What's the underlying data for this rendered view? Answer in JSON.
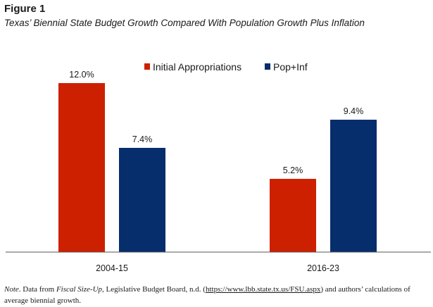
{
  "figure_label": "Figure 1",
  "figure_title": "Texas’ Biennial State Budget Growth Compared With Population Growth Plus Inflation",
  "colors": {
    "initial": "#cc2000",
    "popinf": "#062d6c",
    "axis": "#555555",
    "text": "#1a1a1a"
  },
  "chart_data": {
    "type": "bar",
    "categories": [
      "2004-15",
      "2016-23"
    ],
    "series": [
      {
        "name": "Initial Appropriations",
        "values": [
          12.0,
          5.2
        ],
        "color": "#cc2000"
      },
      {
        "name": "Pop+Inf",
        "values": [
          7.4,
          9.4
        ],
        "color": "#062d6c"
      }
    ],
    "data_labels": [
      [
        "12.0%",
        "5.2%"
      ],
      [
        "7.4%",
        "9.4%"
      ]
    ],
    "ylim": [
      0,
      15.0
    ],
    "grid": false,
    "legend": "top-center"
  },
  "note": {
    "prefix": "Note",
    "t1": ". Data from ",
    "source_title": "Fiscal Size-Up",
    "t2": ", Legislative Budget Board, n.d. (",
    "url": "https://www.lbb.state.tx.us/FSU.aspx",
    "t3": ") and authors’ calculations of average biennial growth."
  }
}
